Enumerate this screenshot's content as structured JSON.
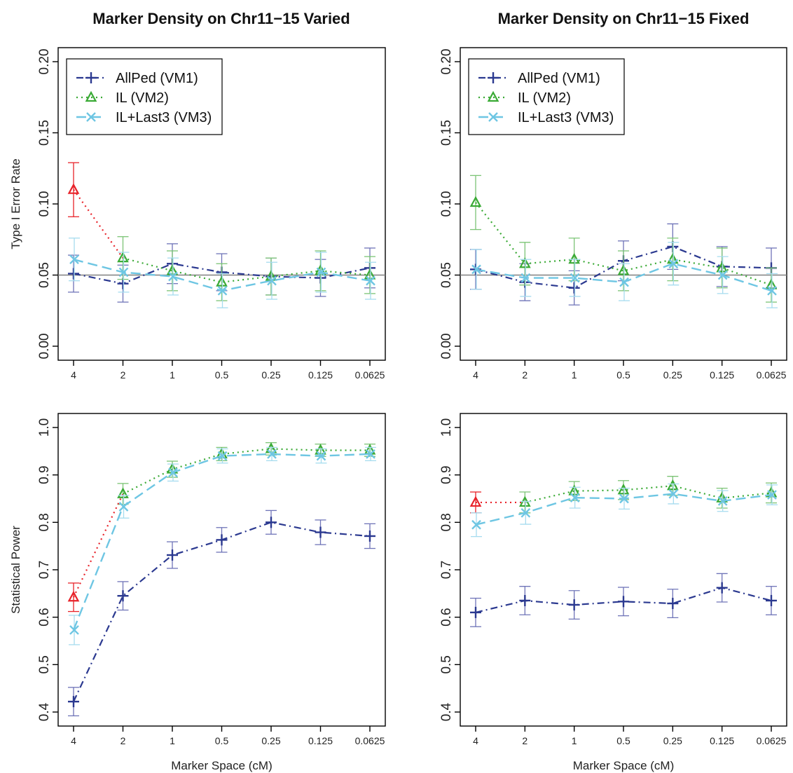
{
  "col_titles": [
    "Marker Density on Chr11−15 Varied",
    "Marker Density on Chr11−15 Fixed"
  ],
  "colors": {
    "allped": "#2b3990",
    "allped_err": "#6f74b8",
    "il": "#3aaa35",
    "il_err": "#7cc476",
    "il_highlight": "#e8232a",
    "il_last3": "#6ec6e3",
    "il_last3_err": "#a6dcef",
    "ref_line": "#808080",
    "axis": "#000000"
  },
  "chart_data": [
    {
      "type": "line",
      "title": "",
      "xlabel": "",
      "ylabel": "Type I Error Rate",
      "categories": [
        "4",
        "2",
        "1",
        "0.5",
        "0.25",
        "0.125",
        "0.0625"
      ],
      "ylim": [
        0,
        0.2
      ],
      "yticks": [
        "0.00",
        "0.05",
        "0.10",
        "0.15",
        "0.20"
      ],
      "reference_line": 0.05,
      "legend": "top-left",
      "series": [
        {
          "name": "AllPed (VM1)",
          "key": "allped",
          "values": [
            0.051,
            0.044,
            0.058,
            0.052,
            0.049,
            0.048,
            0.055
          ],
          "err": [
            0.013,
            0.013,
            0.014,
            0.013,
            0.013,
            0.013,
            0.014
          ]
        },
        {
          "name": "IL (VM2)",
          "key": "il",
          "values": [
            0.11,
            0.062,
            0.053,
            0.045,
            0.049,
            0.053,
            0.05
          ],
          "err": [
            0.019,
            0.015,
            0.014,
            0.013,
            0.013,
            0.014,
            0.013
          ],
          "highlight_first": true
        },
        {
          "name": "IL+Last3 (VM3)",
          "key": "il_last3",
          "values": [
            0.061,
            0.052,
            0.049,
            0.039,
            0.046,
            0.052,
            0.046
          ],
          "err": [
            0.015,
            0.014,
            0.013,
            0.012,
            0.013,
            0.014,
            0.013
          ]
        }
      ]
    },
    {
      "type": "line",
      "title": "",
      "xlabel": "",
      "ylabel": "",
      "categories": [
        "4",
        "2",
        "1",
        "0.5",
        "0.25",
        "0.125",
        "0.0625"
      ],
      "ylim": [
        0,
        0.2
      ],
      "yticks": [
        "0.00",
        "0.05",
        "0.10",
        "0.15",
        "0.20"
      ],
      "reference_line": 0.05,
      "legend": "top-left",
      "series": [
        {
          "name": "AllPed (VM1)",
          "key": "allped",
          "values": [
            0.054,
            0.045,
            0.041,
            0.06,
            0.07,
            0.056,
            0.055
          ],
          "err": [
            0.014,
            0.013,
            0.012,
            0.014,
            0.016,
            0.014,
            0.014
          ]
        },
        {
          "name": "IL (VM2)",
          "key": "il",
          "values": [
            0.101,
            0.058,
            0.061,
            0.053,
            0.061,
            0.055,
            0.043
          ],
          "err": [
            0.019,
            0.015,
            0.015,
            0.014,
            0.015,
            0.014,
            0.012
          ]
        },
        {
          "name": "IL+Last3 (VM3)",
          "key": "il_last3",
          "values": [
            0.054,
            0.048,
            0.048,
            0.045,
            0.058,
            0.05,
            0.039
          ],
          "err": [
            0.014,
            0.013,
            0.013,
            0.013,
            0.015,
            0.013,
            0.012
          ],
          "highlight_first": false
        }
      ]
    },
    {
      "type": "line",
      "title": "",
      "xlabel": "Marker Space (cM)",
      "ylabel": "Statistical Power",
      "categories": [
        "4",
        "2",
        "1",
        "0.5",
        "0.25",
        "0.125",
        "0.0625"
      ],
      "ylim": [
        0.4,
        1.0
      ],
      "yticks": [
        "0.4",
        "0.5",
        "0.6",
        "0.7",
        "0.8",
        "0.9",
        "1.0"
      ],
      "series": [
        {
          "name": "AllPed (VM1)",
          "key": "allped",
          "values": [
            0.422,
            0.645,
            0.731,
            0.763,
            0.8,
            0.779,
            0.771
          ],
          "err": [
            0.03,
            0.03,
            0.028,
            0.026,
            0.025,
            0.026,
            0.026
          ]
        },
        {
          "name": "IL (VM2)",
          "key": "il",
          "values": [
            0.642,
            0.86,
            0.912,
            0.944,
            0.955,
            0.952,
            0.952
          ],
          "err": [
            0.03,
            0.022,
            0.017,
            0.014,
            0.013,
            0.013,
            0.013
          ],
          "highlight_first": true
        },
        {
          "name": "IL+Last3 (VM3)",
          "key": "il_last3",
          "values": [
            0.573,
            0.833,
            0.905,
            0.94,
            0.944,
            0.94,
            0.944
          ],
          "err": [
            0.031,
            0.024,
            0.018,
            0.015,
            0.014,
            0.015,
            0.014
          ]
        }
      ]
    },
    {
      "type": "line",
      "title": "",
      "xlabel": "Marker Space (cM)",
      "ylabel": "",
      "categories": [
        "4",
        "2",
        "1",
        "0.5",
        "0.25",
        "0.125",
        "0.0625"
      ],
      "ylim": [
        0.4,
        1.0
      ],
      "yticks": [
        "0.4",
        "0.5",
        "0.6",
        "0.7",
        "0.8",
        "0.9",
        "1.0"
      ],
      "series": [
        {
          "name": "AllPed (VM1)",
          "key": "allped",
          "values": [
            0.61,
            0.635,
            0.626,
            0.633,
            0.629,
            0.662,
            0.635
          ],
          "err": [
            0.03,
            0.03,
            0.03,
            0.03,
            0.03,
            0.03,
            0.03
          ]
        },
        {
          "name": "IL (VM2)",
          "key": "il",
          "values": [
            0.842,
            0.842,
            0.866,
            0.868,
            0.877,
            0.851,
            0.862
          ],
          "err": [
            0.022,
            0.022,
            0.02,
            0.02,
            0.02,
            0.021,
            0.021
          ],
          "highlight_first": true
        },
        {
          "name": "IL+Last3 (VM3)",
          "key": "il_last3",
          "values": [
            0.795,
            0.82,
            0.852,
            0.85,
            0.86,
            0.845,
            0.858
          ],
          "err": [
            0.025,
            0.024,
            0.022,
            0.022,
            0.021,
            0.022,
            0.021
          ]
        }
      ]
    }
  ]
}
